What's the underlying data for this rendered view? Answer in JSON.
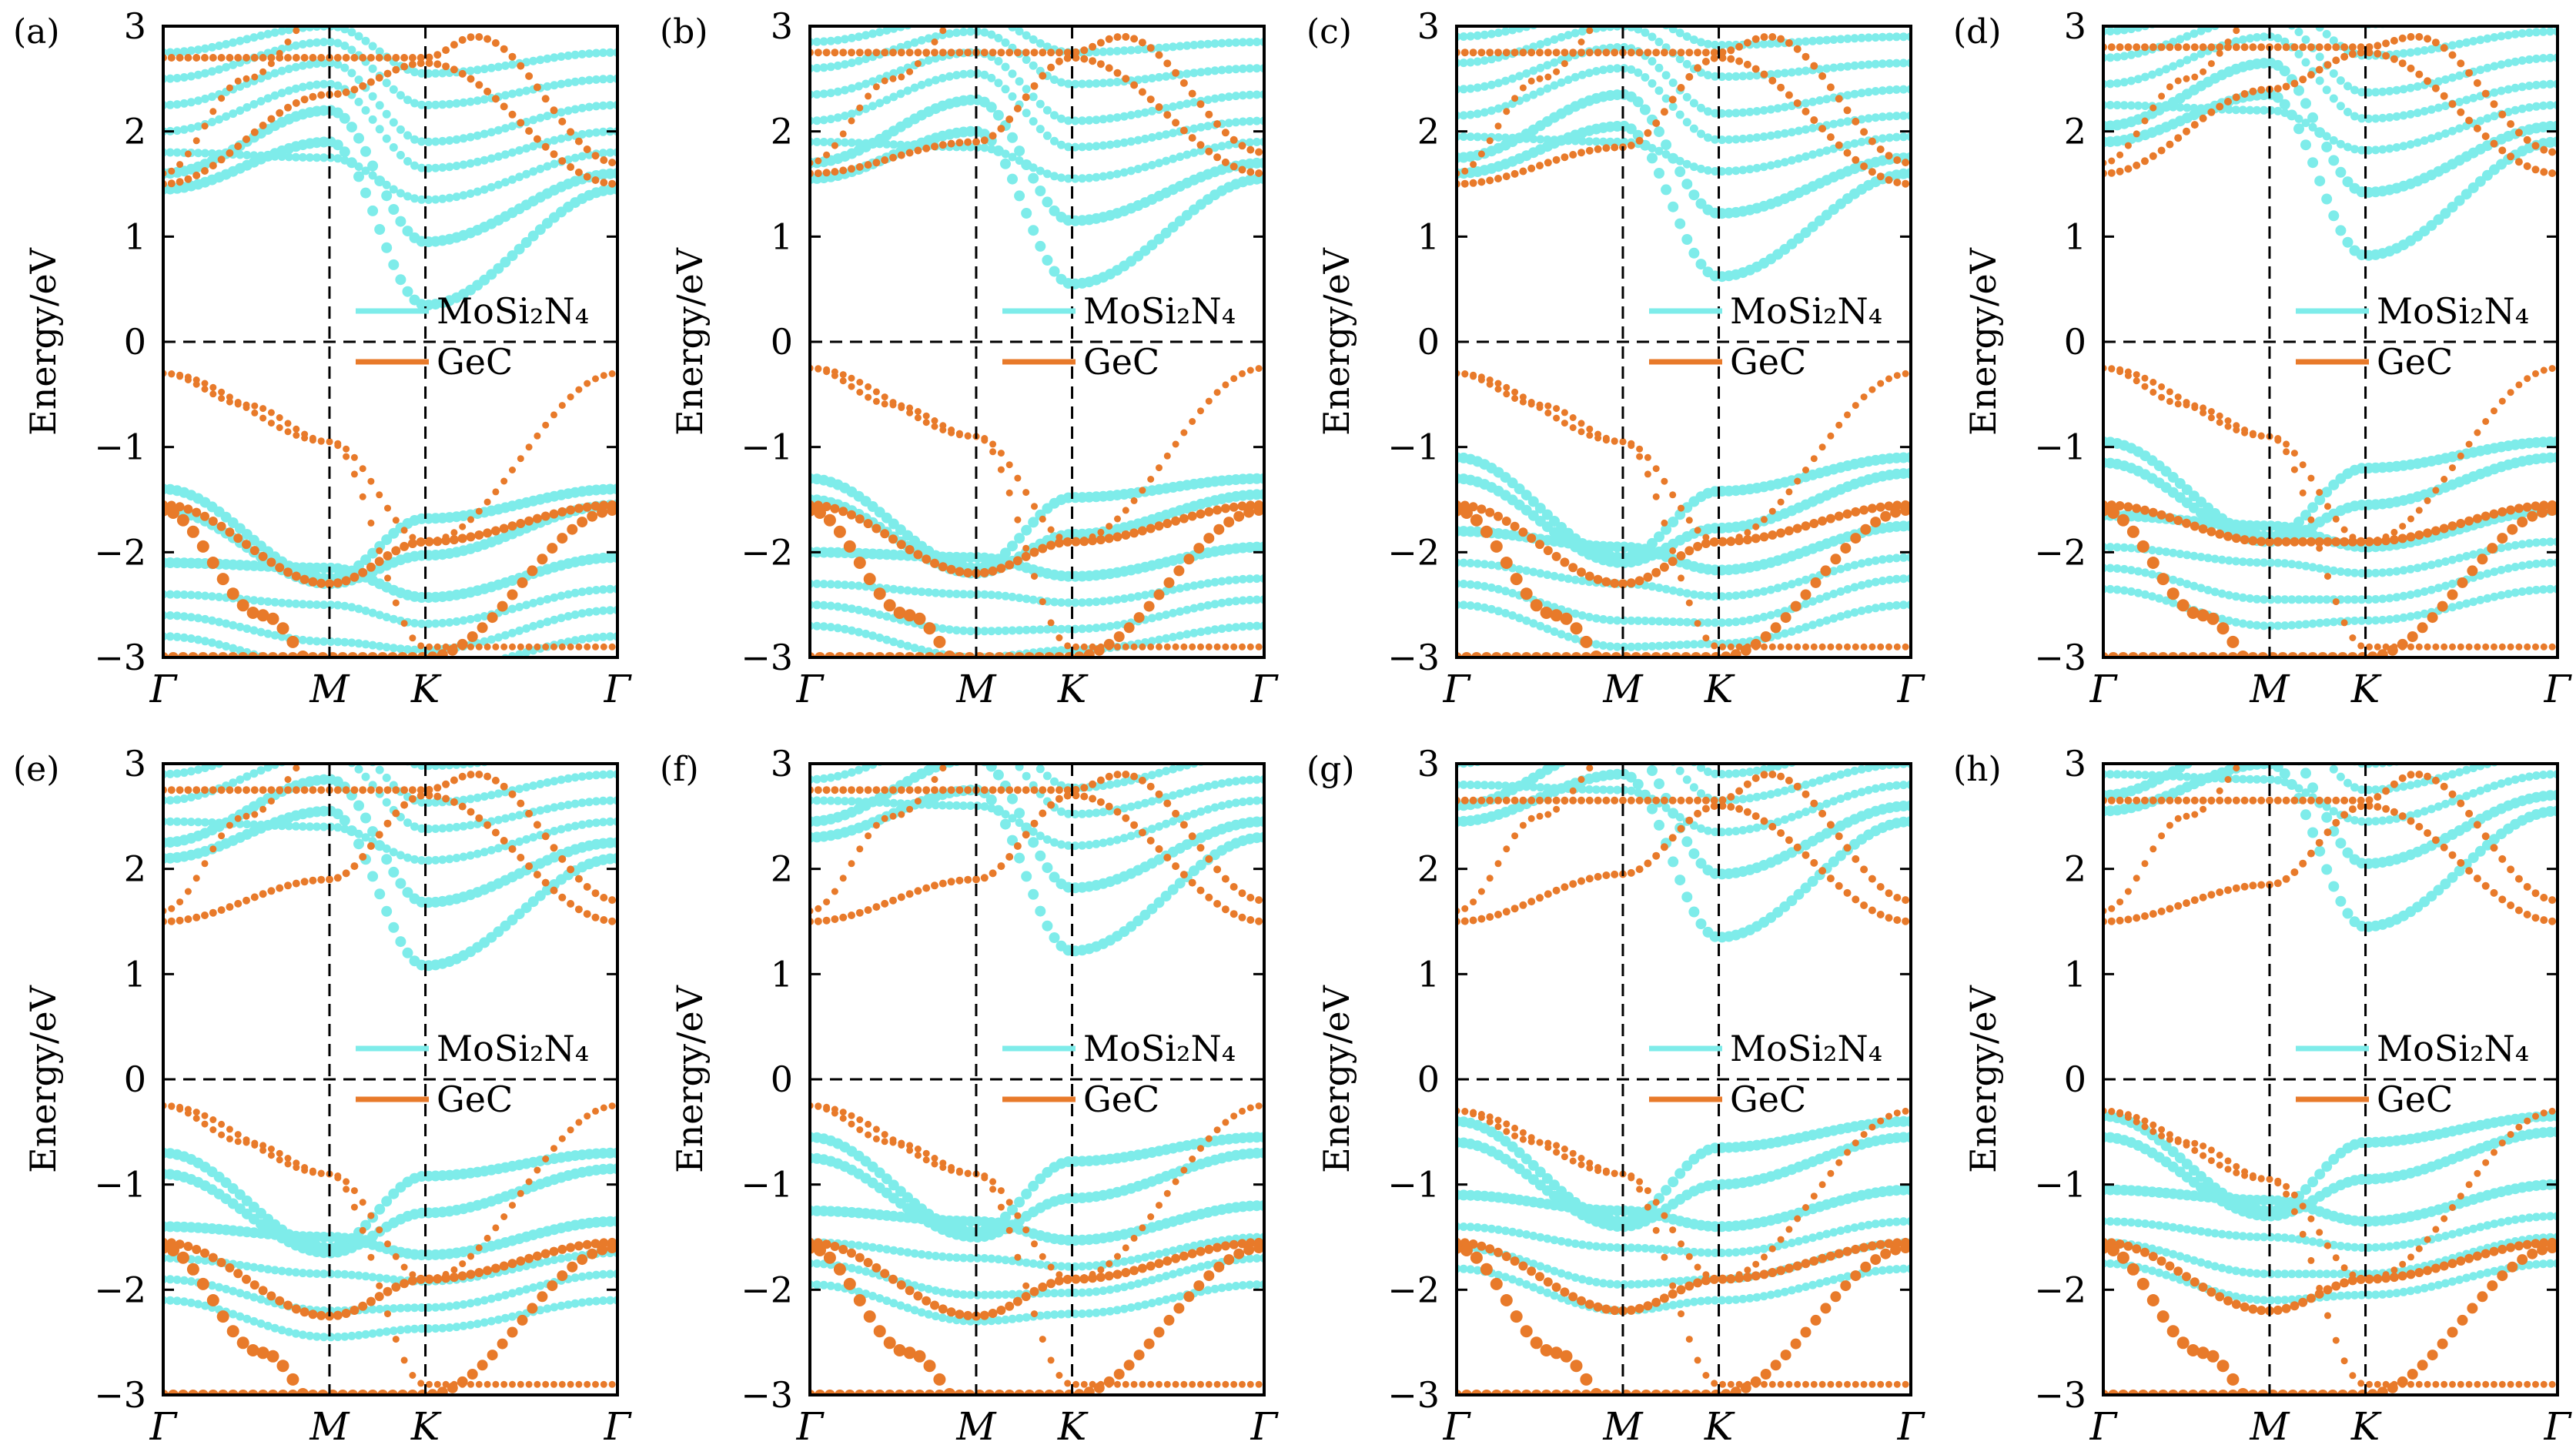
{
  "figure": {
    "colors": {
      "mosi2n4": "#7eecea",
      "gec": "#e87a2a",
      "axis": "#000000",
      "guide": "#000000"
    },
    "y_label": "Energy/eV",
    "legend": {
      "entries": [
        {
          "text": "MoSi₂N₄",
          "color": "#7eecea"
        },
        {
          "text": "GeC",
          "color": "#e87a2a"
        }
      ]
    },
    "kpath": [
      "Γ",
      "M",
      "K",
      "Γ"
    ],
    "y_ticks": [
      "−3",
      "−2",
      "−1",
      "0",
      "1",
      "2",
      "3"
    ]
  },
  "chart_data": [
    {
      "panel": "(a)",
      "type": "scatter",
      "ylim": [
        -3,
        3
      ],
      "xlim": [
        0,
        2.732
      ],
      "x_ticks": {
        "values": [
          0,
          1,
          1.577,
          2.732
        ],
        "labels": [
          "Γ",
          "M",
          "K",
          "Γ"
        ]
      },
      "y_ticks": [
        -3,
        -2,
        -1,
        0,
        1,
        2,
        3
      ],
      "reference_lines": {
        "vertical_x": [
          1,
          1.577
        ],
        "horizontal_y": [
          0
        ]
      },
      "legend": [
        "MoSi₂N₄",
        "GeC"
      ],
      "series": [
        {
          "name": "MoSi₂N₄",
          "conduction_min_at_K": 0.35,
          "conduction_at_Gamma": 1.45,
          "valence_top_at_K": -1.68,
          "valence_at_Gamma": -1.4,
          "valence_at_M": -2.3
        },
        {
          "name": "GeC",
          "valence_max_at_Gamma": -0.3,
          "valence_at_M": -0.95,
          "conduction_at_Gamma": 1.5,
          "conduction_at_M": 2.35,
          "conduction_at_K": 2.65,
          "lower_valence_at_M": -2.3
        }
      ]
    },
    {
      "panel": "(b)",
      "type": "scatter",
      "ylim": [
        -3,
        3
      ],
      "xlim": [
        0,
        2.732
      ],
      "x_ticks": {
        "values": [
          0,
          1,
          1.577,
          2.732
        ],
        "labels": [
          "Γ",
          "M",
          "K",
          "Γ"
        ]
      },
      "y_ticks": [
        -3,
        -2,
        -1,
        0,
        1,
        2,
        3
      ],
      "reference_lines": {
        "vertical_x": [
          1,
          1.577
        ],
        "horizontal_y": [
          0
        ]
      },
      "legend": [
        "MoSi₂N₄",
        "GeC"
      ],
      "series": [
        {
          "name": "MoSi₂N₄",
          "conduction_min_at_K": 0.55,
          "conduction_at_Gamma": 1.55,
          "valence_top_at_K": -1.48,
          "valence_at_Gamma": -1.3,
          "valence_at_M": -2.2
        },
        {
          "name": "GeC",
          "valence_max_at_Gamma": -0.25,
          "valence_at_M": -0.9,
          "conduction_at_Gamma": 1.6,
          "conduction_at_M": 1.9,
          "conduction_at_K": 2.7,
          "lower_valence_at_M": -2.2
        }
      ]
    },
    {
      "panel": "(c)",
      "type": "scatter",
      "ylim": [
        -3,
        3
      ],
      "xlim": [
        0,
        2.732
      ],
      "x_ticks": {
        "values": [
          0,
          1,
          1.577,
          2.732
        ],
        "labels": [
          "Γ",
          "M",
          "K",
          "Γ"
        ]
      },
      "y_ticks": [
        -3,
        -2,
        -1,
        0,
        1,
        2,
        3
      ],
      "reference_lines": {
        "vertical_x": [
          1,
          1.577
        ],
        "horizontal_y": [
          0
        ]
      },
      "legend": [
        "MoSi₂N₄",
        "GeC"
      ],
      "series": [
        {
          "name": "MoSi₂N₄",
          "conduction_min_at_K": 0.62,
          "conduction_at_Gamma": 1.6,
          "valence_top_at_K": -1.42,
          "valence_at_Gamma": -1.1,
          "valence_at_M": -2.1
        },
        {
          "name": "GeC",
          "valence_max_at_Gamma": -0.3,
          "valence_at_M": -0.95,
          "conduction_at_Gamma": 1.5,
          "conduction_at_M": 1.85,
          "conduction_at_K": 2.7,
          "lower_valence_at_M": -2.3
        }
      ]
    },
    {
      "panel": "(d)",
      "type": "scatter",
      "ylim": [
        -3,
        3
      ],
      "xlim": [
        0,
        2.732
      ],
      "x_ticks": {
        "values": [
          0,
          1,
          1.577,
          2.732
        ],
        "labels": [
          "Γ",
          "M",
          "K",
          "Γ"
        ]
      },
      "y_ticks": [
        -3,
        -2,
        -1,
        0,
        1,
        2,
        3
      ],
      "reference_lines": {
        "vertical_x": [
          1,
          1.577
        ],
        "horizontal_y": [
          0
        ]
      },
      "legend": [
        "MoSi₂N₄",
        "GeC"
      ],
      "series": [
        {
          "name": "MoSi₂N₄",
          "conduction_min_at_K": 0.82,
          "conduction_at_Gamma": 1.9,
          "valence_top_at_K": -1.2,
          "valence_at_Gamma": -0.95,
          "valence_at_M": -1.9
        },
        {
          "name": "GeC",
          "valence_max_at_Gamma": -0.25,
          "valence_at_M": -0.9,
          "conduction_at_Gamma": 1.6,
          "conduction_at_M": 2.4,
          "conduction_at_K": 2.75,
          "lower_valence_at_M": -1.9
        }
      ]
    },
    {
      "panel": "(e)",
      "type": "scatter",
      "ylim": [
        -3,
        3
      ],
      "xlim": [
        0,
        2.732
      ],
      "x_ticks": {
        "values": [
          0,
          1,
          1.577,
          2.732
        ],
        "labels": [
          "Γ",
          "M",
          "K",
          "Γ"
        ]
      },
      "y_ticks": [
        -3,
        -2,
        -1,
        0,
        1,
        2,
        3
      ],
      "reference_lines": {
        "vertical_x": [
          1,
          1.577
        ],
        "horizontal_y": [
          0
        ]
      },
      "legend": [
        "MoSi₂N₄",
        "GeC"
      ],
      "series": [
        {
          "name": "MoSi₂N₄",
          "conduction_min_at_K": 1.08,
          "conduction_at_Gamma": 2.1,
          "valence_top_at_K": -0.92,
          "valence_at_Gamma": -0.7,
          "valence_at_M": -1.65
        },
        {
          "name": "GeC",
          "valence_max_at_Gamma": -0.25,
          "valence_at_M": -0.9,
          "conduction_at_Gamma": 1.5,
          "conduction_at_M": 1.9,
          "conduction_at_K": 2.7,
          "lower_valence_at_M": -2.25
        }
      ]
    },
    {
      "panel": "(f)",
      "type": "scatter",
      "ylim": [
        -3,
        3
      ],
      "xlim": [
        0,
        2.732
      ],
      "x_ticks": {
        "values": [
          0,
          1,
          1.577,
          2.732
        ],
        "labels": [
          "Γ",
          "M",
          "K",
          "Γ"
        ]
      },
      "y_ticks": [
        -3,
        -2,
        -1,
        0,
        1,
        2,
        3
      ],
      "reference_lines": {
        "vertical_x": [
          1,
          1.577
        ],
        "horizontal_y": [
          0
        ]
      },
      "legend": [
        "MoSi₂N₄",
        "GeC"
      ],
      "series": [
        {
          "name": "MoSi₂N₄",
          "conduction_min_at_K": 1.22,
          "conduction_at_Gamma": 2.3,
          "valence_top_at_K": -0.78,
          "valence_at_Gamma": -0.55,
          "valence_at_M": -1.5
        },
        {
          "name": "GeC",
          "valence_max_at_Gamma": -0.25,
          "valence_at_M": -0.9,
          "conduction_at_Gamma": 1.5,
          "conduction_at_M": 1.9,
          "conduction_at_K": 2.7,
          "lower_valence_at_M": -2.25
        }
      ]
    },
    {
      "panel": "(g)",
      "type": "scatter",
      "ylim": [
        -3,
        3
      ],
      "xlim": [
        0,
        2.732
      ],
      "x_ticks": {
        "values": [
          0,
          1,
          1.577,
          2.732
        ],
        "labels": [
          "Γ",
          "M",
          "K",
          "Γ"
        ]
      },
      "y_ticks": [
        -3,
        -2,
        -1,
        0,
        1,
        2,
        3
      ],
      "reference_lines": {
        "vertical_x": [
          1,
          1.577
        ],
        "horizontal_y": [
          0
        ]
      },
      "legend": [
        "MoSi₂N₄",
        "GeC"
      ],
      "series": [
        {
          "name": "MoSi₂N₄",
          "conduction_min_at_K": 1.35,
          "conduction_at_Gamma": 2.45,
          "valence_top_at_K": -0.65,
          "valence_at_Gamma": -0.4,
          "valence_at_M": -1.4
        },
        {
          "name": "GeC",
          "valence_max_at_Gamma": -0.3,
          "valence_at_M": -0.9,
          "conduction_at_Gamma": 1.5,
          "conduction_at_M": 1.95,
          "conduction_at_K": 2.6,
          "lower_valence_at_M": -2.2
        }
      ]
    },
    {
      "panel": "(h)",
      "type": "scatter",
      "ylim": [
        -3,
        3
      ],
      "xlim": [
        0,
        2.732
      ],
      "x_ticks": {
        "values": [
          0,
          1,
          1.577,
          2.732
        ],
        "labels": [
          "Γ",
          "M",
          "K",
          "Γ"
        ]
      },
      "y_ticks": [
        -3,
        -2,
        -1,
        0,
        1,
        2,
        3
      ],
      "reference_lines": {
        "vertical_x": [
          1,
          1.577
        ],
        "horizontal_y": [
          0
        ]
      },
      "legend": [
        "MoSi₂N₄",
        "GeC"
      ],
      "series": [
        {
          "name": "MoSi₂N₄",
          "conduction_min_at_K": 1.45,
          "conduction_at_Gamma": 2.55,
          "valence_top_at_K": -0.6,
          "valence_at_Gamma": -0.35,
          "valence_at_M": -1.3
        },
        {
          "name": "GeC",
          "valence_max_at_Gamma": -0.3,
          "valence_at_M": -0.95,
          "conduction_at_Gamma": 1.5,
          "conduction_at_M": 1.85,
          "conduction_at_K": 2.6,
          "lower_valence_at_M": -2.2
        }
      ]
    }
  ]
}
